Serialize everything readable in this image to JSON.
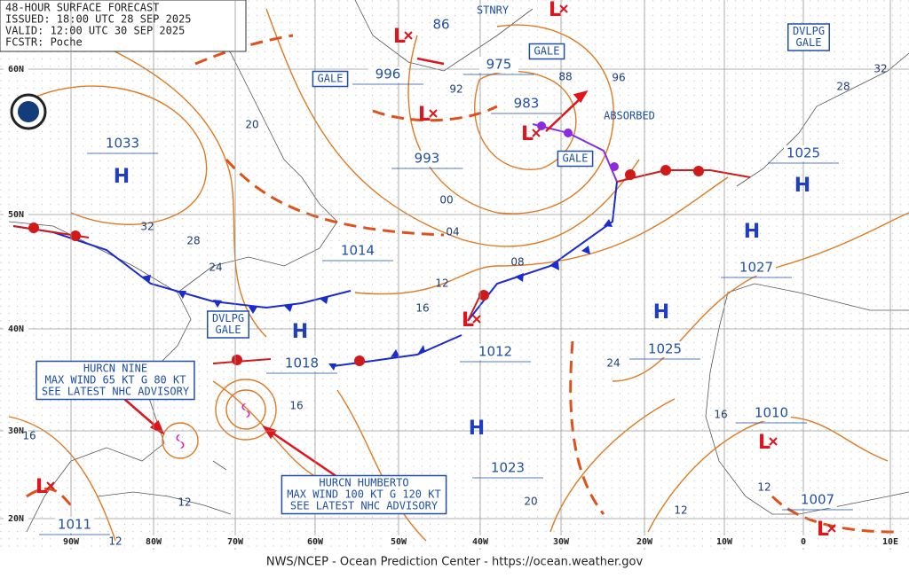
{
  "header": {
    "lines": [
      "48-HOUR SURFACE FORECAST",
      "ISSUED: 18:00 UTC 28 SEP 2025",
      "VALID: 12:00 UTC 30 SEP 2025",
      "FCSTR: Poche"
    ]
  },
  "footer": "NWS/NCEP - Ocean Prediction Center - https://ocean.weather.gov",
  "lat_labels": [
    "60N",
    "50N",
    "40N",
    "30N",
    "20N"
  ],
  "lon_labels": [
    "90W",
    "80W",
    "70W",
    "60W",
    "50W",
    "40W",
    "30W",
    "20W",
    "10W",
    "0",
    "10E"
  ],
  "symbols": {
    "high": "H",
    "low": "L"
  },
  "pressures": [
    "1033",
    "996",
    "975",
    "983",
    "993",
    "1014",
    "1018",
    "1012",
    "1025",
    "1027",
    "1025",
    "1010",
    "1023",
    "1007",
    "1011"
  ],
  "isobar_labels": [
    "86",
    "92",
    "88",
    "96",
    "32",
    "28",
    "20",
    "32",
    "28",
    "24",
    "00",
    "04",
    "08",
    "12",
    "16",
    "16",
    "16",
    "24",
    "16",
    "12",
    "20",
    "12",
    "12",
    "12"
  ],
  "notes": [
    "STNRY",
    "ABSORBED"
  ],
  "boxes": [
    [
      "GALE"
    ],
    [
      "GALE"
    ],
    [
      "GALE"
    ],
    [
      "DVLPG",
      "GALE"
    ],
    [
      "DVLPG",
      "GALE"
    ],
    [
      "HURCN NINE",
      "MAX WIND 65 KT G 80 KT",
      "SEE LATEST NHC ADVISORY"
    ],
    [
      "HURCN HUMBERTO",
      "MAX WIND 100 KT G 120 KT",
      "SEE LATEST NHC ADVISORY"
    ]
  ]
}
